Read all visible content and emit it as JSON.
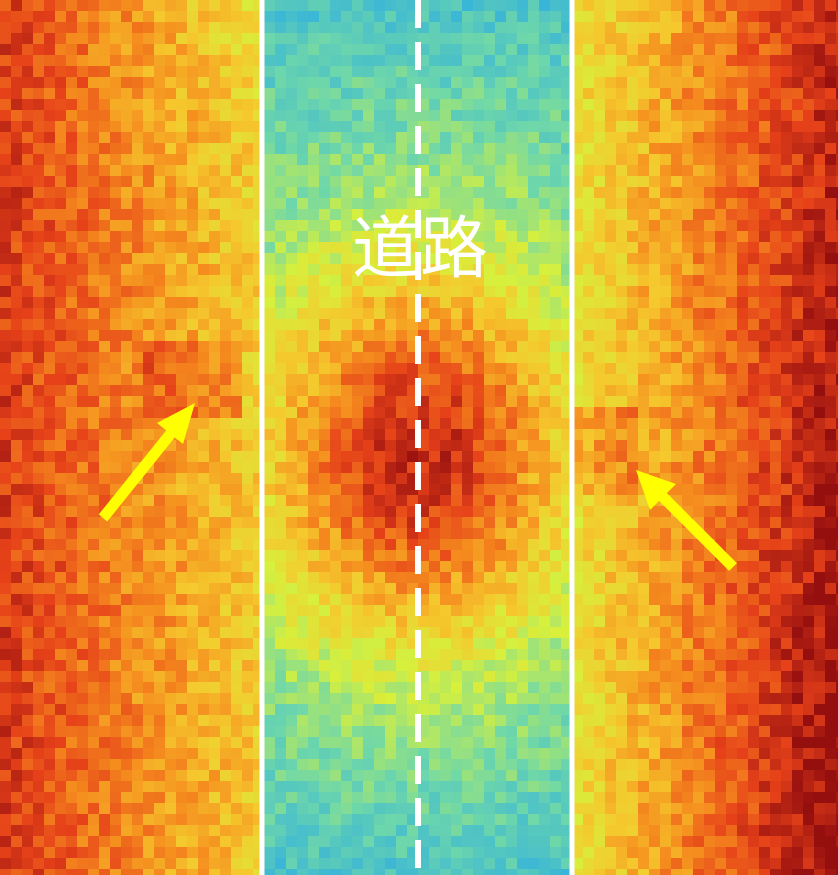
{
  "label": "道路"
}
